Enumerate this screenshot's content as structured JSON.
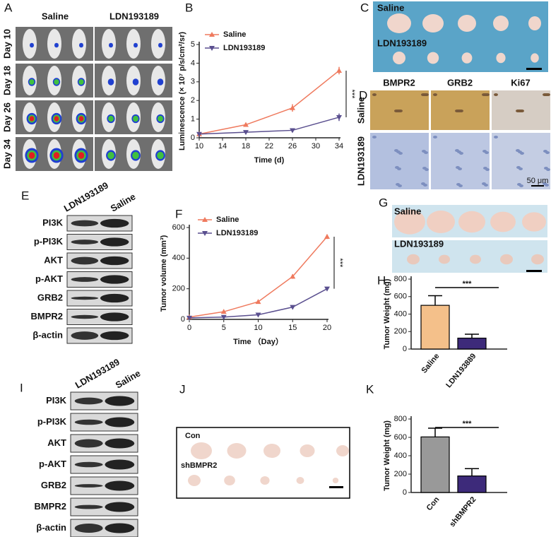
{
  "panels": {
    "A": {
      "label": "A",
      "columns": [
        "Saline",
        "LDN193189"
      ],
      "rows": [
        "Day 10",
        "Day 18",
        "Day 26",
        "Day 34"
      ]
    },
    "C": {
      "label": "C",
      "rows": [
        "Saline",
        "LDN193189"
      ]
    },
    "D": {
      "label": "D",
      "columns": [
        "BMPR2",
        "GRB2",
        "Ki67"
      ],
      "rows": [
        "Saline",
        "LDN193189"
      ],
      "scale_bar": "50 μm"
    },
    "E": {
      "label": "E",
      "columns": [
        "LDN193189",
        "Saline"
      ],
      "rows": [
        "PI3K",
        "p-PI3K",
        "AKT",
        "p-AKT",
        "GRB2",
        "BMPR2",
        "β-actin"
      ]
    },
    "G": {
      "label": "G",
      "rows": [
        "Saline",
        "LDN193189"
      ]
    },
    "I": {
      "label": "I",
      "columns": [
        "LDN193189",
        "Saline"
      ],
      "rows": [
        "PI3K",
        "p-PI3K",
        "AKT",
        "p-AKT",
        "GRB2",
        "BMPR2",
        "β-actin"
      ]
    },
    "J": {
      "label": "J",
      "rows": [
        "Con",
        "shBMPR2"
      ]
    }
  },
  "chart_data": [
    {
      "panel": "B",
      "type": "line",
      "y_label": "Luminescence (× 10⁷ p/s/cm²/sr)",
      "x_label": "Time (d)",
      "x": [
        10,
        18,
        26,
        34
      ],
      "xlim": [
        10,
        34
      ],
      "xticks": [
        10,
        14,
        18,
        22,
        26,
        30,
        34
      ],
      "ylim": [
        0,
        5
      ],
      "yticks": [
        0,
        1,
        2,
        3,
        4,
        5
      ],
      "annotation": "***",
      "series": [
        {
          "name": "Saline",
          "color": "#ef7a5e",
          "marker": "triangle-up",
          "values": [
            0.2,
            0.7,
            1.6,
            3.6
          ],
          "errors": [
            0.05,
            0.05,
            0.2,
            0.2
          ]
        },
        {
          "name": "LDN193189",
          "color": "#5a4f8f",
          "marker": "triangle-down",
          "values": [
            0.2,
            0.3,
            0.4,
            1.1
          ],
          "errors": [
            0.02,
            0.03,
            0.05,
            0.2
          ]
        }
      ]
    },
    {
      "panel": "F",
      "type": "line",
      "y_label": "Tumor volume (mm³)",
      "x_label": "Time （Day）",
      "x": [
        0,
        5,
        10,
        15,
        20
      ],
      "xlim": [
        0,
        20
      ],
      "xticks": [
        0,
        5,
        10,
        15,
        20
      ],
      "ylim": [
        0,
        600
      ],
      "yticks": [
        0,
        200,
        400,
        600
      ],
      "annotation": "***",
      "series": [
        {
          "name": "Saline",
          "color": "#ef7a5e",
          "marker": "triangle-up",
          "values": [
            15,
            50,
            115,
            280,
            540
          ],
          "errors": [
            3,
            5,
            12,
            15,
            15
          ]
        },
        {
          "name": "LDN193189",
          "color": "#5a4f8f",
          "marker": "triangle-down",
          "values": [
            10,
            15,
            30,
            80,
            200
          ],
          "errors": [
            2,
            3,
            5,
            8,
            8
          ]
        }
      ]
    },
    {
      "panel": "H",
      "type": "bar",
      "y_label": "Tumor Weight (mg)",
      "categories": [
        "Saline",
        "LDN193889"
      ],
      "values": [
        500,
        125
      ],
      "errors": [
        110,
        45
      ],
      "colors": [
        "#f4c08a",
        "#3d2a7a"
      ],
      "ylim": [
        0,
        800
      ],
      "yticks": [
        0,
        200,
        400,
        600,
        800
      ],
      "annotation": "***"
    },
    {
      "panel": "K",
      "type": "bar",
      "y_label": "Tumor Weight (mg)",
      "categories": [
        "Con",
        "shBMPR2"
      ],
      "values": [
        605,
        180
      ],
      "errors": [
        95,
        80
      ],
      "colors": [
        "#999999",
        "#3d2a7a"
      ],
      "ylim": [
        0,
        800
      ],
      "yticks": [
        0,
        200,
        400,
        600,
        800
      ],
      "annotation": "***"
    }
  ]
}
